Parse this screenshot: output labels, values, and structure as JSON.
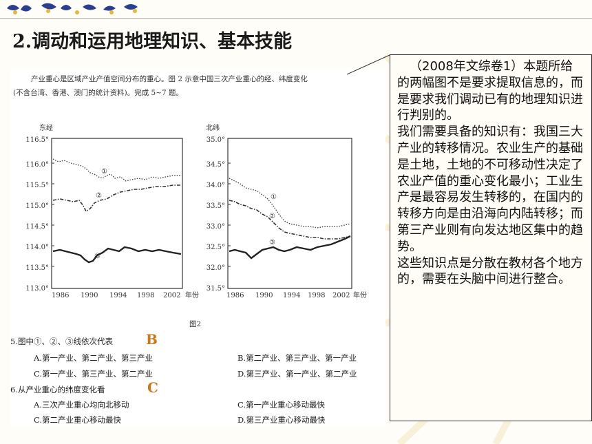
{
  "title": "2.调动和运用地理知识、基本技能",
  "document": {
    "intro_line1": "产业重心是区域产业产值空间分布的重心。图 2 示意中国三次产业重心的经、纬度变化",
    "intro_line2": "(不含台湾、香港、澳门的统计资料)。完成 5~7 题。",
    "figure_label": "图2",
    "left_chart": {
      "y_title": "东经",
      "y_ticks": [
        "116.5°",
        "116.0°",
        "115.5°",
        "115.0°",
        "114.5°",
        "114.0°",
        "113.5°",
        "113.0°"
      ],
      "x_ticks": [
        "1986",
        "1990",
        "1994",
        "1998",
        "2002"
      ],
      "x_unit": "年份"
    },
    "right_chart": {
      "y_title": "北纬",
      "y_ticks": [
        "35.0°",
        "34.5°",
        "34.0°",
        "33.5°",
        "33.0°",
        "32.5°",
        "32.0°",
        "31.5°"
      ],
      "x_ticks": [
        "1986",
        "1990",
        "1994",
        "1998",
        "2002"
      ],
      "x_unit": "年份"
    },
    "curve_markers": [
      "①",
      "②",
      "③"
    ],
    "q5": {
      "stem": "5.图中①、②、③线依次代表",
      "answer": "B",
      "options": [
        "A.第一产业、第二产业、第三产业",
        "B.第二产业、第三产业、第一产业",
        "C.第一产业、第三产业、第二产业",
        "D.第三产业、第一产业、第二产业"
      ]
    },
    "q6": {
      "stem": "6.从产业重心的纬度变化看",
      "answer": "C",
      "options": [
        "A.三次产业重心均向北移动",
        "C.第一产业重心移动最快",
        "C.第二产业重心移动最快",
        "D.第三产业重心移动最快"
      ]
    }
  },
  "note": {
    "para1": "（2008年文综卷1）本题所给的两幅图不是要求提取信息的，而是要求我们调动已有的地理知识进行判别的。",
    "para2": "我们需要具备的知识有：我国三大产业的转移情况。农业生产的基础是土地，土地的不可移动性决定了农业产值的重心变化最小；工业生产是最容易发生转移的，在国内的转移方向是由沿海向内陆转移；而第三产业则有向发达地区集中的趋势。",
    "para3": "这些知识点是分散在教材各个地方的，需要在头脑中间进行整合。"
  },
  "colors": {
    "answer": "#c9781a",
    "title": "#1a1a1a"
  }
}
